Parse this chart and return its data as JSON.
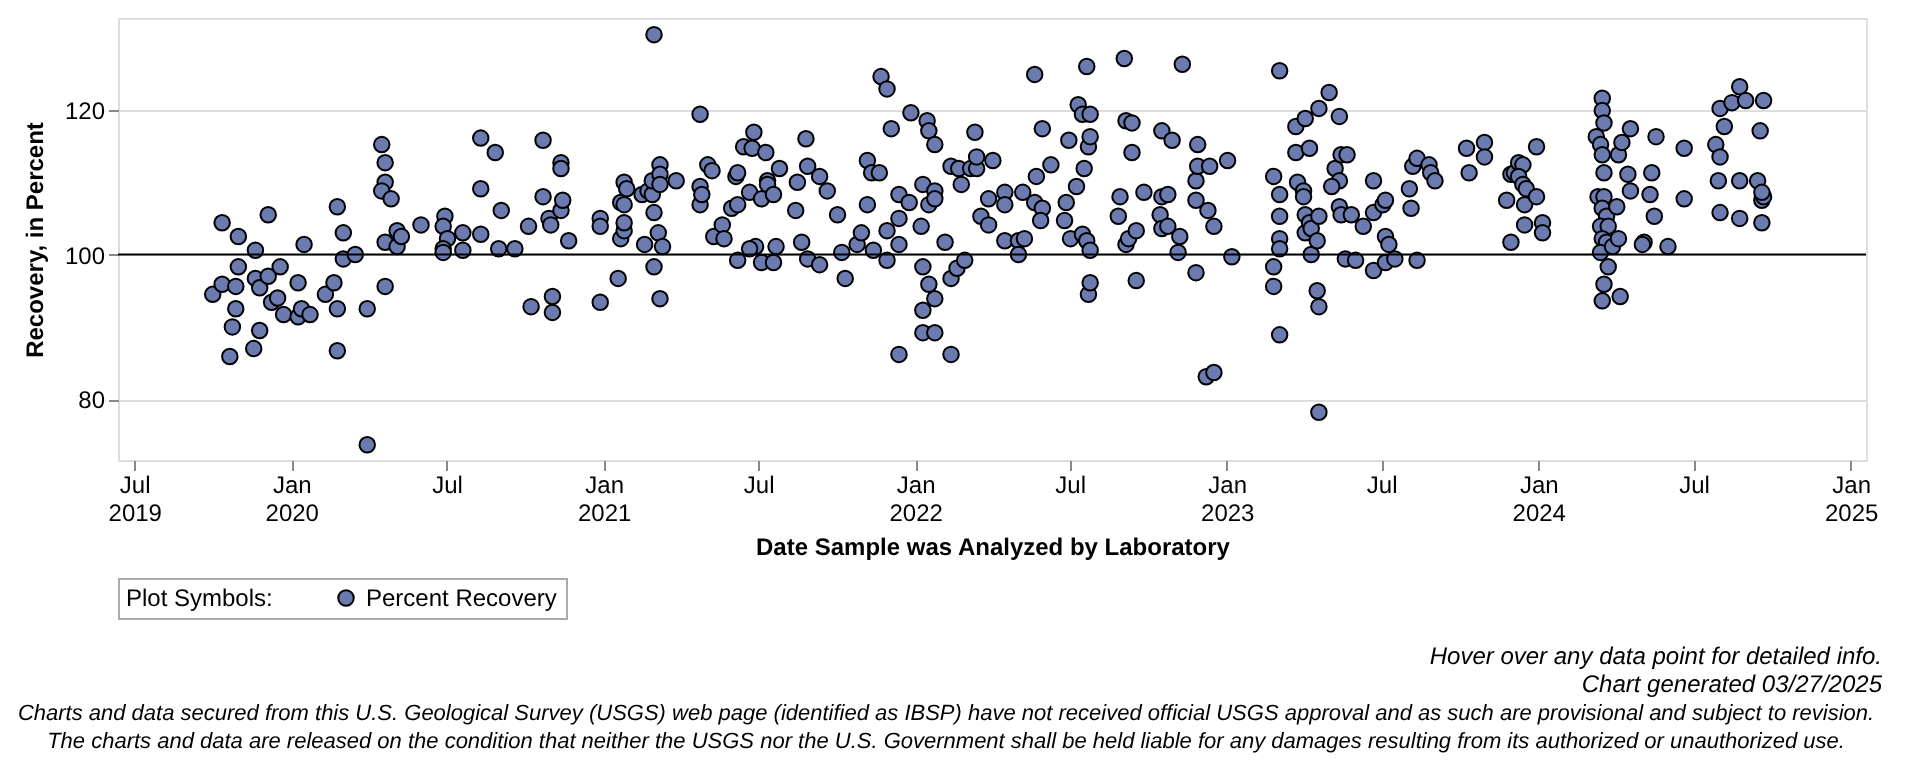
{
  "chart_data": {
    "type": "scatter",
    "xlabel": "Date Sample was Analyzed by Laboratory",
    "ylabel": "Recovery, in Percent",
    "legend_title": "Plot Symbols:",
    "x": [
      "2019-10-01",
      "2019-10-12",
      "2019-10-12",
      "2019-10-24",
      "2019-10-21",
      "2019-10-28",
      "2019-10-28",
      "2019-10-31",
      "2019-10-31",
      "2019-11-18",
      "2019-11-20",
      "2019-11-20",
      "2019-11-25",
      "2019-11-25",
      "2019-12-05",
      "2019-12-05",
      "2019-12-09",
      "2019-12-16",
      "2019-12-19",
      "2019-12-23",
      "2020-01-09",
      "2020-01-09",
      "2020-01-13",
      "2020-01-16",
      "2020-01-23",
      "2020-02-10",
      "2020-02-20",
      "2020-02-24",
      "2020-02-24",
      "2020-02-24",
      "2020-03-02",
      "2020-03-02",
      "2020-03-16",
      "2020-03-30",
      "2020-03-30",
      "2020-04-16",
      "2020-04-20",
      "2020-04-20",
      "2020-04-16",
      "2020-04-27",
      "2020-04-20",
      "2020-04-20",
      "2020-05-04",
      "2020-05-04",
      "2020-05-09",
      "2020-06-01",
      "2020-06-29",
      "2020-06-27",
      "2020-07-02",
      "2020-06-27",
      "2020-06-27",
      "2020-07-20",
      "2020-07-20",
      "2020-08-10",
      "2020-08-10",
      "2020-08-10",
      "2020-08-27",
      "2020-09-03",
      "2020-08-31",
      "2020-09-19",
      "2020-10-05",
      "2020-10-08",
      "2020-10-22",
      "2020-10-22",
      "2020-10-29",
      "2020-10-31",
      "2020-11-02",
      "2020-11-02",
      "2020-11-12",
      "2020-11-12",
      "2020-11-12",
      "2020-11-14",
      "2020-11-21",
      "2020-12-28",
      "2020-12-28",
      "2020-12-28",
      "2021-01-18",
      "2021-01-21",
      "2021-01-25",
      "2021-01-25",
      "2021-01-21",
      "2021-01-25",
      "2021-01-28",
      "2021-01-25",
      "2021-02-18",
      "2021-02-15",
      "2021-02-22",
      "2021-02-27",
      "2021-02-27",
      "2021-03-01",
      "2021-03-01",
      "2021-03-06",
      "2021-03-08",
      "2021-03-08",
      "2021-03-08",
      "2021-03-11",
      "2021-03-08",
      "2021-03-01",
      "2021-03-27",
      "2021-04-24",
      "2021-04-24",
      "2021-04-24",
      "2021-04-26",
      "2021-05-03",
      "2021-05-08",
      "2021-05-10",
      "2021-05-20",
      "2021-05-22",
      "2021-05-31",
      "2021-06-07",
      "2021-06-05",
      "2021-06-07",
      "2021-06-07",
      "2021-06-14",
      "2021-06-21",
      "2021-06-24",
      "2021-06-26",
      "2021-06-28",
      "2021-06-21",
      "2021-07-05",
      "2021-07-05",
      "2021-07-10",
      "2021-07-12",
      "2021-07-12",
      "2021-07-19",
      "2021-07-19",
      "2021-07-22",
      "2021-07-26",
      "2021-08-14",
      "2021-08-16",
      "2021-08-21",
      "2021-08-26",
      "2021-08-28",
      "2021-08-28",
      "2021-09-11",
      "2021-09-11",
      "2021-09-20",
      "2021-10-02",
      "2021-10-07",
      "2021-10-11",
      "2021-10-25",
      "2021-10-30",
      "2021-11-06",
      "2021-11-06",
      "2021-11-11",
      "2021-11-20",
      "2021-11-13",
      "2021-11-22",
      "2021-11-29",
      "2021-12-04",
      "2021-11-29",
      "2021-11-29",
      "2021-12-13",
      "2021-12-13",
      "2021-12-13",
      "2021-12-13",
      "2021-12-25",
      "2021-12-27",
      "2022-01-08",
      "2022-01-10",
      "2022-01-10",
      "2022-01-15",
      "2022-01-17",
      "2022-01-17",
      "2022-01-24",
      "2022-01-24",
      "2022-01-24",
      "2022-01-17",
      "2022-01-10",
      "2022-01-24",
      "2022-01-10",
      "2022-01-24",
      "2022-02-05",
      "2022-02-12",
      "2022-02-12",
      "2022-02-12",
      "2022-02-19",
      "2022-02-21",
      "2022-02-24",
      "2022-02-28",
      "2022-03-07",
      "2022-03-14",
      "2022-03-14",
      "2022-03-12",
      "2022-03-19",
      "2022-03-28",
      "2022-03-28",
      "2022-04-02",
      "2022-04-16",
      "2022-04-16",
      "2022-04-16",
      "2022-05-02",
      "2022-05-02",
      "2022-05-07",
      "2022-05-09",
      "2022-05-21",
      "2022-05-23",
      "2022-05-21",
      "2022-05-30",
      "2022-05-30",
      "2022-05-28",
      "2022-06-09",
      "2022-06-25",
      "2022-06-27",
      "2022-06-30",
      "2022-07-02",
      "2022-07-09",
      "2022-07-11",
      "2022-07-16",
      "2022-07-18",
      "2022-07-21",
      "2022-07-23",
      "2022-07-25",
      "2022-07-25",
      "2022-07-23",
      "2022-07-25",
      "2022-07-16",
      "2022-07-21",
      "2022-07-25",
      "2022-08-29",
      "2022-08-27",
      "2022-09-03",
      "2022-09-05",
      "2022-09-05",
      "2022-09-12",
      "2022-09-12",
      "2022-09-08",
      "2022-09-17",
      "2022-09-17",
      "2022-09-26",
      "2022-10-17",
      "2022-10-17",
      "2022-10-15",
      "2022-10-17",
      "2022-10-24",
      "2022-10-24",
      "2022-10-29",
      "2022-11-05",
      "2022-11-07",
      "2022-11-10",
      "2022-11-26",
      "2022-11-26",
      "2022-11-28",
      "2022-11-28",
      "2022-11-26",
      "2022-12-10",
      "2022-12-12",
      "2022-12-17",
      "2022-12-08",
      "2022-12-17",
      "2023-01-02",
      "2023-01-07",
      "2023-02-25",
      "2023-03-04",
      "2023-03-04",
      "2023-03-04",
      "2023-03-04",
      "2023-02-25",
      "2023-02-25",
      "2023-03-04",
      "2023-03-04",
      "2023-03-23",
      "2023-03-23",
      "2023-04-03",
      "2023-04-08",
      "2023-03-25",
      "2023-04-01",
      "2023-04-01",
      "2023-04-03",
      "2023-04-03",
      "2023-04-08",
      "2023-04-10",
      "2023-04-10",
      "2023-04-17",
      "2023-04-19",
      "2023-04-19",
      "2023-04-17",
      "2023-04-19",
      "2023-04-19",
      "2023-05-01",
      "2023-05-13",
      "2023-05-08",
      "2023-05-13",
      "2023-05-04",
      "2023-05-15",
      "2023-05-22",
      "2023-05-13",
      "2023-05-15",
      "2023-05-27",
      "2023-05-20",
      "2023-06-01",
      "2023-06-10",
      "2023-06-22",
      "2023-06-22",
      "2023-06-22",
      "2023-07-03",
      "2023-07-06",
      "2023-07-06",
      "2023-07-10",
      "2023-07-06",
      "2023-07-17",
      "2023-08-03",
      "2023-08-05",
      "2023-08-07",
      "2023-08-12",
      "2023-08-12",
      "2023-08-26",
      "2023-08-28",
      "2023-09-02",
      "2023-10-09",
      "2023-10-12",
      "2023-10-30",
      "2023-10-30",
      "2023-11-25",
      "2023-11-30",
      "2023-11-30",
      "2023-12-04",
      "2023-12-09",
      "2023-12-14",
      "2023-12-09",
      "2023-12-14",
      "2023-12-16",
      "2023-12-16",
      "2023-12-18",
      "2023-12-30",
      "2023-12-30",
      "2024-01-06",
      "2024-01-06",
      "2024-03-09",
      "2024-03-11",
      "2024-03-16",
      "2024-03-16",
      "2024-03-18",
      "2024-03-14",
      "2024-03-16",
      "2024-03-18",
      "2024-03-18",
      "2024-03-16",
      "2024-03-21",
      "2024-03-14",
      "2024-03-23",
      "2024-03-16",
      "2024-03-21",
      "2024-03-14",
      "2024-03-23",
      "2024-03-18",
      "2024-03-16",
      "2024-04-04",
      "2024-04-02",
      "2024-04-06",
      "2024-03-28",
      "2024-04-18",
      "2024-04-08",
      "2024-04-15",
      "2024-04-18",
      "2024-04-04",
      "2024-05-04",
      "2024-05-02",
      "2024-05-18",
      "2024-05-13",
      "2024-05-11",
      "2024-05-16",
      "2024-06-01",
      "2024-06-20",
      "2024-06-20",
      "2024-07-27",
      "2024-08-01",
      "2024-08-01",
      "2024-08-06",
      "2024-08-15",
      "2024-08-24",
      "2024-08-31",
      "2024-09-21",
      "2024-09-17",
      "2024-07-30",
      "2024-08-24",
      "2024-09-14",
      "2024-08-01",
      "2024-08-24",
      "2024-09-19",
      "2024-09-19",
      "2024-09-21",
      "2024-09-19"
    ],
    "series": [
      {
        "name": "Percent Recovery",
        "color": "#6b7bb0",
        "values": [
          94.5,
          104.4,
          95.9,
          90.0,
          85.9,
          92.5,
          95.6,
          102.5,
          98.3,
          87.0,
          96.7,
          100.6,
          89.5,
          95.4,
          97.0,
          105.5,
          93.4,
          94.0,
          98.3,
          91.7,
          91.4,
          96.1,
          92.5,
          101.4,
          91.7,
          94.5,
          96.1,
          92.5,
          86.7,
          106.6,
          103.0,
          99.4,
          100.0,
          92.5,
          73.7,
          115.2,
          112.7,
          110.0,
          108.8,
          107.7,
          101.7,
          95.6,
          103.3,
          101.1,
          102.5,
          104.1,
          105.3,
          103.9,
          102.2,
          100.8,
          100.3,
          103.0,
          100.6,
          116.1,
          109.1,
          102.8,
          114.1,
          106.1,
          100.8,
          100.8,
          103.9,
          92.8,
          115.8,
          108.0,
          105.0,
          104.1,
          94.2,
          92.0,
          112.7,
          111.9,
          106.1,
          107.5,
          101.9,
          105.0,
          103.9,
          93.4,
          96.7,
          102.2,
          103.3,
          104.4,
          107.2,
          110.0,
          109.1,
          106.9,
          101.4,
          108.3,
          108.8,
          108.3,
          110.2,
          105.8,
          98.3,
          103.0,
          112.4,
          111.1,
          109.7,
          101.1,
          93.9,
          130.4,
          110.2,
          119.4,
          109.4,
          106.9,
          108.3,
          112.4,
          111.6,
          102.5,
          104.1,
          102.2,
          106.4,
          99.2,
          110.8,
          111.3,
          106.9,
          114.9,
          108.6,
          114.7,
          116.9,
          101.1,
          100.8,
          107.7,
          98.9,
          114.1,
          110.2,
          109.7,
          108.3,
          98.9,
          101.1,
          111.9,
          106.1,
          110.0,
          101.7,
          116.0,
          112.2,
          99.4,
          110.8,
          98.6,
          108.8,
          105.5,
          100.3,
          96.7,
          101.4,
          103.0,
          106.9,
          113.0,
          111.3,
          111.3,
          100.6,
          124.6,
          122.9,
          117.4,
          99.2,
          103.3,
          105.0,
          108.3,
          101.4,
          86.2,
          107.2,
          119.6,
          103.9,
          109.7,
          98.3,
          118.5,
          117.1,
          106.9,
          108.8,
          107.7,
          115.2,
          95.9,
          92.3,
          93.9,
          89.2,
          89.2,
          101.7,
          112.2,
          96.7,
          86.2,
          98.1,
          111.9,
          109.7,
          99.2,
          111.9,
          111.9,
          113.5,
          116.9,
          105.3,
          104.1,
          107.7,
          113.0,
          108.6,
          106.9,
          101.9,
          101.9,
          100.0,
          108.6,
          102.2,
          124.9,
          110.8,
          107.2,
          106.4,
          117.4,
          104.7,
          112.4,
          104.7,
          107.2,
          115.8,
          102.2,
          109.4,
          120.7,
          119.4,
          111.9,
          126.0,
          114.9,
          116.3,
          119.4,
          94.5,
          96.1,
          102.8,
          101.9,
          100.6,
          108.0,
          105.3,
          127.1,
          101.4,
          118.5,
          118.2,
          114.1,
          102.2,
          103.3,
          96.4,
          108.6,
          117.1,
          108.0,
          105.5,
          103.6,
          108.3,
          103.9,
          115.8,
          100.3,
          102.5,
          126.3,
          110.2,
          107.5,
          112.2,
          115.2,
          97.5,
          106.1,
          112.2,
          103.9,
          83.1,
          83.7,
          113.0,
          99.7,
          110.8,
          108.3,
          105.3,
          102.2,
          100.8,
          98.3,
          95.6,
          125.4,
          88.9,
          114.1,
          117.7,
          118.8,
          114.7,
          110.0,
          108.8,
          108.0,
          105.5,
          103.0,
          104.4,
          103.6,
          100.0,
          101.9,
          120.2,
          105.3,
          95.0,
          92.8,
          78.2,
          122.4,
          119.1,
          111.9,
          110.2,
          109.4,
          113.8,
          113.8,
          106.6,
          105.5,
          105.5,
          99.4,
          99.2,
          103.9,
          110.2,
          105.8,
          97.8,
          106.9,
          107.5,
          102.5,
          101.4,
          98.9,
          99.4,
          109.1,
          106.4,
          112.2,
          113.3,
          99.2,
          112.4,
          111.3,
          110.2,
          114.7,
          111.3,
          115.5,
          113.5,
          107.5,
          101.7,
          111.1,
          111.3,
          112.7,
          112.4,
          110.8,
          109.7,
          106.9,
          104.1,
          109.1,
          114.9,
          108.0,
          104.4,
          103.0,
          116.3,
          108.0,
          121.6,
          119.9,
          118.2,
          115.2,
          113.8,
          111.3,
          108.0,
          106.4,
          105.3,
          103.9,
          103.9,
          102.2,
          101.7,
          100.3,
          98.3,
          95.9,
          93.6,
          113.8,
          106.6,
          94.2,
          101.1,
          117.4,
          115.5,
          111.1,
          108.8,
          102.2,
          101.7,
          101.4,
          116.3,
          111.3,
          108.3,
          105.3,
          101.1,
          114.7,
          107.7,
          115.2,
          113.5,
          120.2,
          117.7,
          121.0,
          123.2,
          121.3,
          121.3,
          117.1,
          110.2,
          110.2,
          110.2,
          105.8,
          105.0,
          104.4,
          107.5,
          108.0,
          108.6
        ]
      }
    ],
    "xlim": [
      "2019-06-12",
      "2025-01-19"
    ],
    "ylim": [
      71.6,
      132.7
    ],
    "xticks": [
      {
        "value": "2019-07-01",
        "label": "Jul 2019"
      },
      {
        "value": "2020-01-01",
        "label": "Jan 2020"
      },
      {
        "value": "2020-07-01",
        "label": "Jul"
      },
      {
        "value": "2021-01-01",
        "label": "Jan 2021"
      },
      {
        "value": "2021-07-01",
        "label": "Jul"
      },
      {
        "value": "2022-01-01",
        "label": "Jan 2022"
      },
      {
        "value": "2022-07-01",
        "label": "Jul"
      },
      {
        "value": "2023-01-01",
        "label": "Jan 2023"
      },
      {
        "value": "2023-07-01",
        "label": "Jul"
      },
      {
        "value": "2024-01-01",
        "label": "Jan 2024"
      },
      {
        "value": "2024-07-01",
        "label": "Jul"
      },
      {
        "value": "2025-01-01",
        "label": "Jan 2025"
      }
    ],
    "yticks": [
      80,
      100,
      120
    ],
    "ref_lines": [
      {
        "axis": "y",
        "value": 100,
        "color": "#000000"
      }
    ],
    "grid": "y",
    "legend": "bottom",
    "marker": "circle",
    "annotations": [
      "Hover over any data point for detailed info.",
      "Chart generated 03/27/2025",
      "Charts and data secured from this U.S. Geological Survey (USGS) web page (identified as IBSP) have not received official USGS approval and as such are provisional and subject to revision.",
      "The charts and data are released on the condition that neither the USGS nor the U.S. Government shall be held liable for any damages resulting from its authorized or unauthorized use."
    ]
  }
}
